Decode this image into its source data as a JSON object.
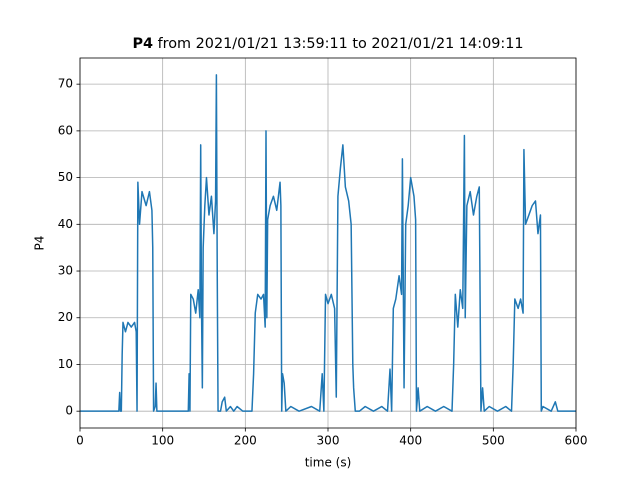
{
  "chart_data": {
    "type": "line",
    "title_variable": "P4",
    "title_range": "from 2021/01/21 13:59:11 to 2021/01/21 14:09:11",
    "xlabel": "time (s)",
    "ylabel": "P4",
    "x": [
      0,
      47,
      48,
      49,
      50,
      51,
      52,
      55,
      58,
      62,
      66,
      68,
      69,
      70,
      72,
      75,
      80,
      84,
      87,
      88,
      89,
      91,
      92,
      93,
      131,
      132,
      133,
      134,
      137,
      140,
      143,
      145,
      146,
      147,
      148,
      149,
      151,
      153,
      156,
      159,
      162,
      164,
      165,
      166,
      167,
      170,
      172,
      175,
      177,
      182,
      186,
      190,
      197,
      208,
      210,
      212,
      215,
      219,
      222,
      224,
      225,
      226,
      227,
      230,
      234,
      238,
      242,
      243,
      244,
      245,
      247,
      249,
      255,
      265,
      280,
      290,
      293,
      295,
      297,
      300,
      304,
      308,
      310,
      312,
      315,
      318,
      321,
      325,
      328,
      330,
      331,
      333,
      338,
      345,
      355,
      365,
      372,
      375,
      377,
      379,
      382,
      386,
      389,
      390,
      392,
      394,
      397,
      400,
      404,
      406,
      407,
      409,
      411,
      420,
      430,
      440,
      450,
      452,
      454,
      457,
      460,
      463,
      465,
      466,
      468,
      472,
      476,
      480,
      483,
      485,
      487,
      489,
      495,
      505,
      515,
      522,
      524,
      526,
      530,
      533,
      536,
      537,
      539,
      543,
      547,
      551,
      554,
      557,
      558,
      560,
      570,
      575,
      578,
      600
    ],
    "values": [
      0,
      0,
      4,
      0,
      0,
      12,
      19,
      17,
      19,
      18,
      19,
      17,
      0,
      49,
      40,
      47,
      44,
      47,
      43,
      35,
      0,
      1,
      6,
      0,
      0,
      8,
      0,
      25,
      24,
      21,
      26,
      20,
      57,
      22,
      5,
      35,
      44,
      50,
      42,
      46,
      38,
      45,
      72,
      30,
      0,
      0,
      2,
      3,
      0,
      1,
      0,
      1,
      0,
      0,
      8,
      21,
      25,
      24,
      25,
      18,
      60,
      20,
      41,
      44,
      46,
      43,
      49,
      44,
      0,
      8,
      6,
      0,
      1,
      0,
      1,
      0,
      8,
      0,
      25,
      23,
      25,
      22,
      3,
      46,
      52,
      57,
      48,
      45,
      40,
      10,
      5,
      0,
      0,
      1,
      0,
      1,
      0,
      9,
      0,
      22,
      24,
      29,
      25,
      54,
      5,
      40,
      44,
      50,
      46,
      41,
      0,
      5,
      0,
      1,
      0,
      1,
      0,
      10,
      25,
      18,
      26,
      22,
      59,
      20,
      44,
      47,
      42,
      46,
      48,
      0,
      5,
      0,
      1,
      0,
      1,
      0,
      10,
      24,
      22,
      24,
      21,
      56,
      40,
      42,
      44,
      45,
      38,
      42,
      0,
      1,
      0,
      2,
      0,
      0
    ],
    "color": "#1f77b4",
    "xlim": [
      0,
      600
    ],
    "xticks": [
      0,
      100,
      200,
      300,
      400,
      500,
      600
    ],
    "ylim": [
      -3.6,
      75.6
    ],
    "yticks": [
      0,
      10,
      20,
      30,
      40,
      50,
      60,
      70
    ],
    "grid": true
  }
}
